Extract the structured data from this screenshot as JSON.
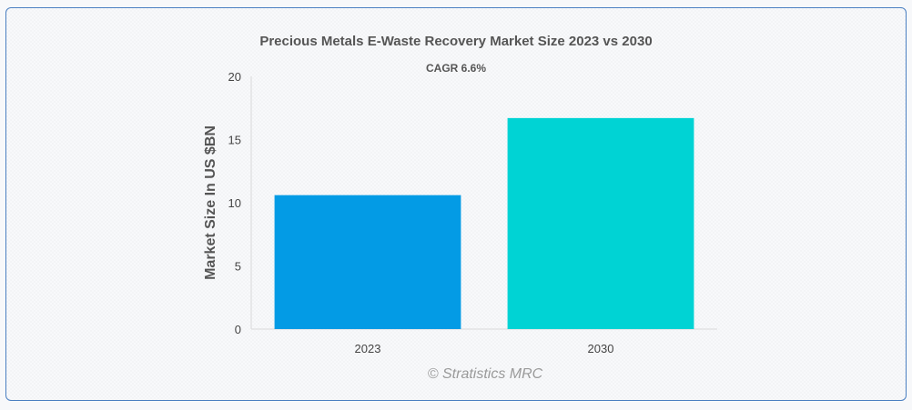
{
  "chart_data": {
    "type": "bar",
    "title": "Precious Metals E-Waste Recovery Market Size 2023 vs 2030",
    "subtitle": "CAGR 6.6%",
    "ylabel": "Market Size In US $BN",
    "xlabel": "",
    "categories": [
      "2023",
      "2030"
    ],
    "values": [
      10.6,
      16.7
    ],
    "colors": [
      "#039be5",
      "#00d3d4"
    ],
    "ylim": [
      0,
      20
    ],
    "yticks": [
      0,
      5,
      10,
      15,
      20
    ],
    "grid": false,
    "legend": "none",
    "credit": "© Stratistics MRC"
  }
}
